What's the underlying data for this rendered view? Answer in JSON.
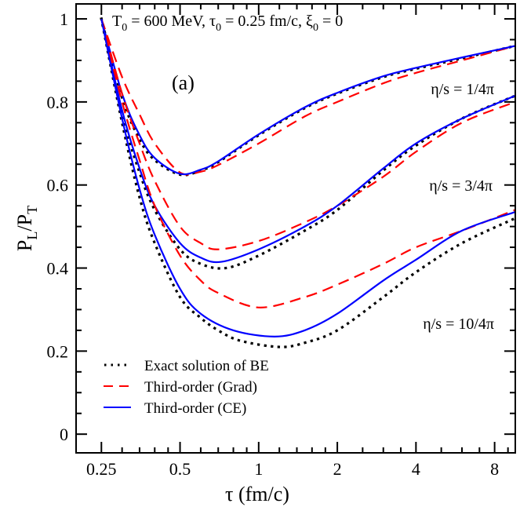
{
  "chart_data": {
    "type": "line",
    "title": "",
    "annotation_header": {
      "t0": "T",
      "t0_sub": "0",
      "t0_val": " = 600 MeV,  ",
      "tau": "τ",
      "tau_sub": "0",
      "tau_val": " = 0.25 fm/c,  ",
      "xi": "ξ",
      "xi_sub": "0",
      "xi_val": " = 0"
    },
    "panel_label": "(a)",
    "xlabel": "τ (fm/c)",
    "ylabel": {
      "p1": "P",
      "s1": "L",
      "slash": "/P",
      "s2": "T"
    },
    "x_scale": "log",
    "xlim": [
      0.2,
      9.6
    ],
    "ylim": [
      -0.045,
      1.036
    ],
    "x_ticks": [
      0.25,
      0.5,
      1,
      2,
      4,
      8
    ],
    "x_tick_labels": [
      "0.25",
      "0.5",
      "1",
      "2",
      "4",
      "8"
    ],
    "y_ticks": [
      0,
      0.2,
      0.4,
      0.6,
      0.8,
      1
    ],
    "y_tick_labels": [
      "0",
      "0.2",
      "0.4",
      "0.6",
      "0.8",
      "1"
    ],
    "grid": false,
    "legend_position": "bottom-left",
    "legend": [
      {
        "label": "Exact solution of BE",
        "color": "#000000",
        "style": "dotted"
      },
      {
        "label": "Third-order (Grad)",
        "color": "#ff0000",
        "style": "dashed"
      },
      {
        "label": "Third-order (CE)",
        "color": "#0000ff",
        "style": "solid"
      }
    ],
    "curve_labels": [
      "η/s = 1/4π",
      "η/s = 3/4π",
      "η/s = 10/4π"
    ],
    "series": [
      {
        "group": "η/s = 1/4π",
        "kind": "exact",
        "color": "#000000",
        "style": "dotted",
        "x": [
          0.25,
          0.3,
          0.35,
          0.4,
          0.5,
          0.6,
          0.7,
          1,
          1.5,
          2,
          3,
          4,
          6,
          9.6
        ],
        "y": [
          1.0,
          0.81,
          0.71,
          0.66,
          0.625,
          0.635,
          0.655,
          0.72,
          0.785,
          0.82,
          0.86,
          0.88,
          0.905,
          0.935
        ]
      },
      {
        "group": "η/s = 1/4π",
        "kind": "grad",
        "color": "#ff0000",
        "style": "dashed",
        "x": [
          0.25,
          0.3,
          0.35,
          0.4,
          0.5,
          0.6,
          0.7,
          1,
          1.5,
          2,
          3,
          4,
          6,
          9.6
        ],
        "y": [
          1.0,
          0.86,
          0.77,
          0.7,
          0.63,
          0.632,
          0.648,
          0.7,
          0.765,
          0.8,
          0.845,
          0.87,
          0.9,
          0.935
        ]
      },
      {
        "group": "η/s = 1/4π",
        "kind": "ce",
        "color": "#0000ff",
        "style": "solid",
        "x": [
          0.25,
          0.3,
          0.35,
          0.4,
          0.5,
          0.6,
          0.7,
          1,
          1.5,
          2,
          3,
          4,
          6,
          9.6
        ],
        "y": [
          1.0,
          0.82,
          0.72,
          0.665,
          0.627,
          0.637,
          0.657,
          0.722,
          0.787,
          0.822,
          0.862,
          0.882,
          0.907,
          0.935
        ]
      },
      {
        "group": "η/s = 3/4π",
        "kind": "exact",
        "color": "#000000",
        "style": "dotted",
        "x": [
          0.25,
          0.3,
          0.35,
          0.4,
          0.5,
          0.6,
          0.75,
          1,
          1.5,
          2,
          3,
          4,
          6,
          9.6
        ],
        "y": [
          1.0,
          0.77,
          0.63,
          0.54,
          0.445,
          0.41,
          0.4,
          0.43,
          0.49,
          0.54,
          0.635,
          0.695,
          0.76,
          0.815
        ]
      },
      {
        "group": "η/s = 3/4π",
        "kind": "grad",
        "color": "#ff0000",
        "style": "dashed",
        "x": [
          0.25,
          0.3,
          0.35,
          0.4,
          0.5,
          0.6,
          0.7,
          1,
          1.5,
          2,
          3,
          4,
          6,
          9.6
        ],
        "y": [
          1.0,
          0.82,
          0.7,
          0.61,
          0.5,
          0.46,
          0.445,
          0.465,
          0.51,
          0.55,
          0.62,
          0.68,
          0.75,
          0.8
        ]
      },
      {
        "group": "η/s = 3/4π",
        "kind": "ce",
        "color": "#0000ff",
        "style": "solid",
        "x": [
          0.25,
          0.3,
          0.35,
          0.4,
          0.5,
          0.6,
          0.72,
          1,
          1.5,
          2,
          3,
          4,
          6,
          9.6
        ],
        "y": [
          1.0,
          0.78,
          0.64,
          0.55,
          0.46,
          0.425,
          0.415,
          0.445,
          0.5,
          0.55,
          0.64,
          0.7,
          0.76,
          0.815
        ]
      },
      {
        "group": "η/s = 10/4π",
        "kind": "exact",
        "color": "#000000",
        "style": "dotted",
        "x": [
          0.25,
          0.3,
          0.35,
          0.4,
          0.5,
          0.6,
          0.7,
          0.85,
          1.2,
          1.5,
          2,
          3,
          4,
          6,
          9.6
        ],
        "y": [
          1.0,
          0.75,
          0.57,
          0.46,
          0.33,
          0.28,
          0.25,
          0.225,
          0.21,
          0.22,
          0.25,
          0.33,
          0.39,
          0.46,
          0.52
        ]
      },
      {
        "group": "η/s = 10/4π",
        "kind": "grad",
        "color": "#ff0000",
        "style": "dashed",
        "x": [
          0.25,
          0.3,
          0.35,
          0.4,
          0.5,
          0.6,
          0.7,
          1,
          1.5,
          2,
          3,
          4,
          6,
          9.6
        ],
        "y": [
          1.0,
          0.8,
          0.66,
          0.55,
          0.43,
          0.37,
          0.34,
          0.305,
          0.33,
          0.36,
          0.41,
          0.45,
          0.49,
          0.54
        ]
      },
      {
        "group": "η/s = 10/4π",
        "kind": "ce",
        "color": "#0000ff",
        "style": "solid",
        "x": [
          0.25,
          0.3,
          0.35,
          0.4,
          0.5,
          0.6,
          0.8,
          1.15,
          1.5,
          2,
          3,
          4,
          6,
          9.6
        ],
        "y": [
          1.0,
          0.76,
          0.59,
          0.48,
          0.35,
          0.29,
          0.25,
          0.235,
          0.25,
          0.29,
          0.37,
          0.42,
          0.49,
          0.535
        ]
      }
    ]
  }
}
